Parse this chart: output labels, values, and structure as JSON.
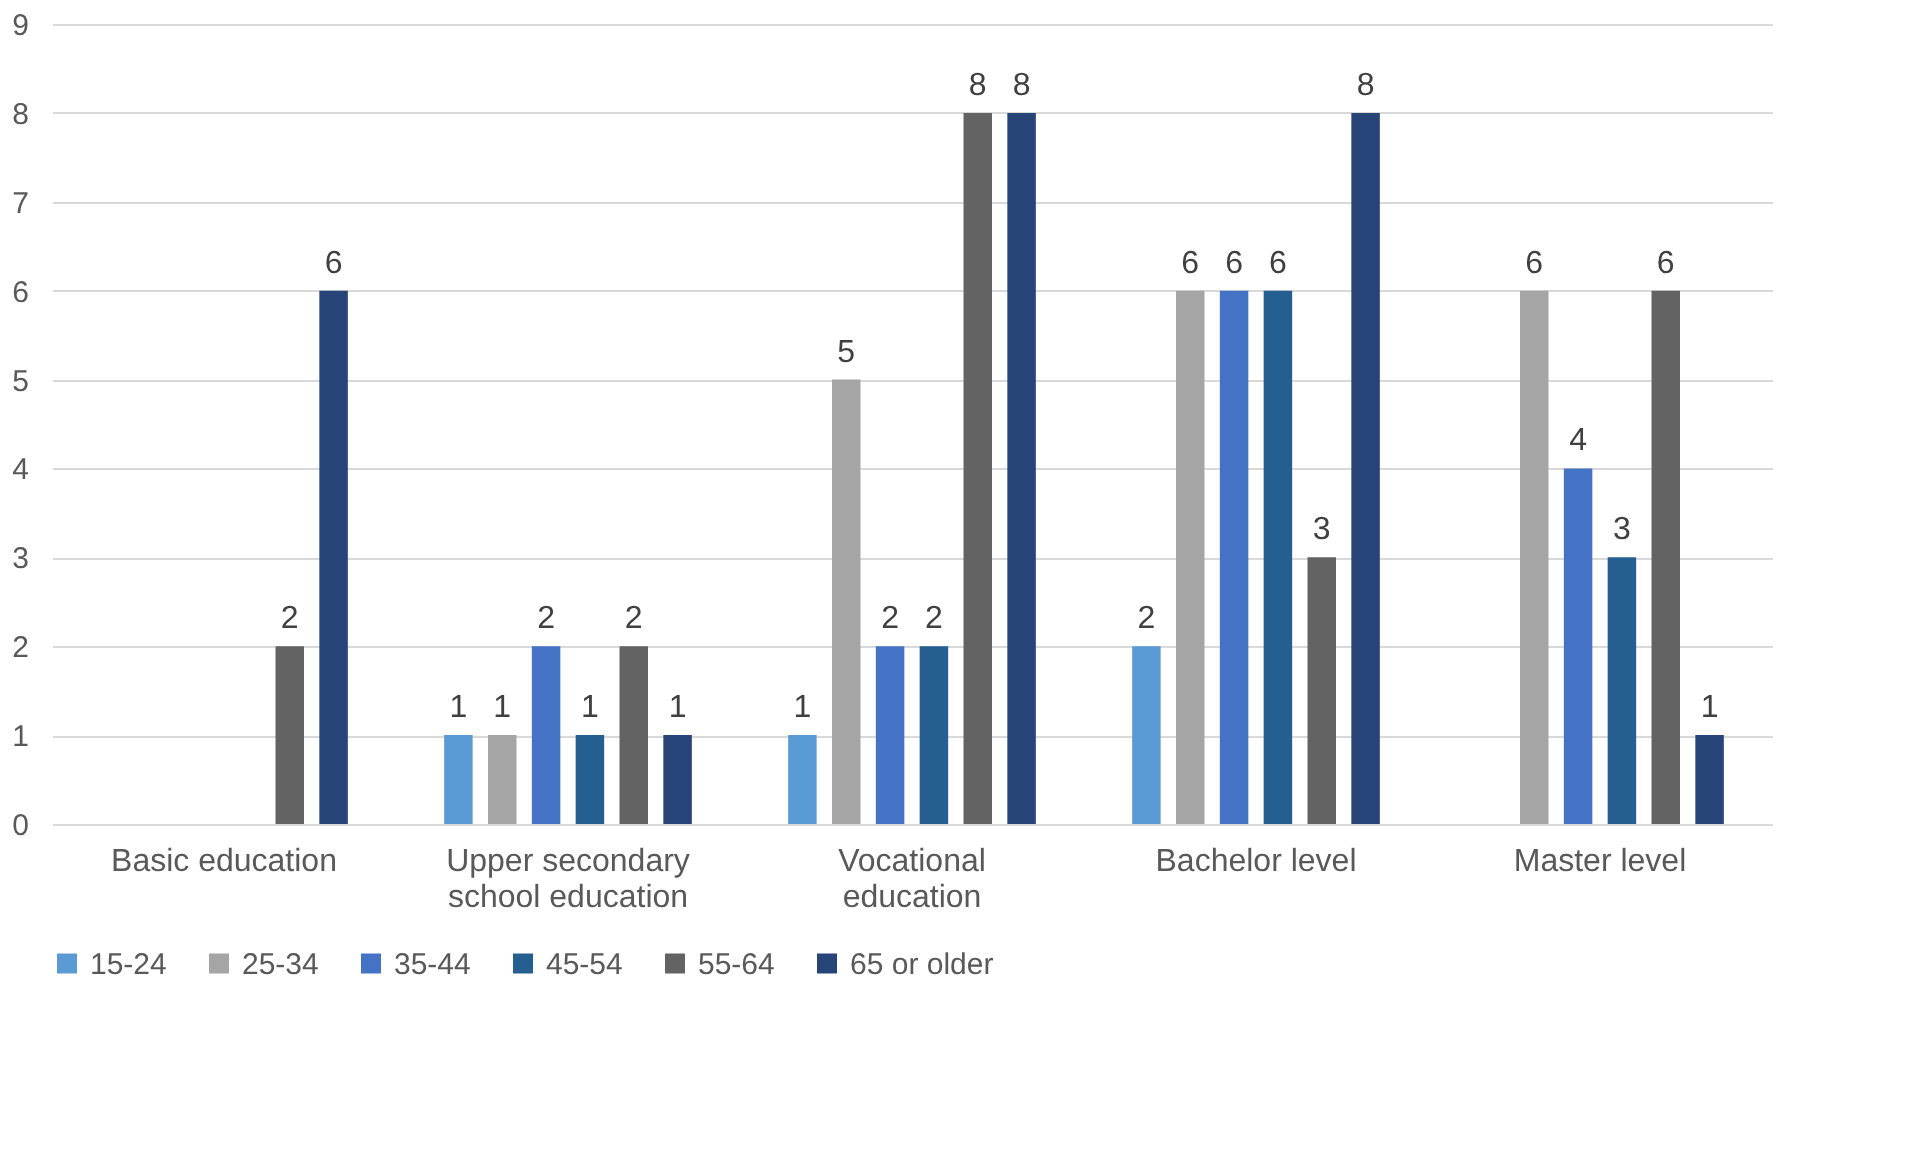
{
  "chart_data": {
    "type": "bar",
    "categories": [
      "Basic education",
      "Upper secondary school education",
      "Vocational education",
      "Bachelor level",
      "Master level"
    ],
    "series": [
      {
        "name": "15-24",
        "color": "#5b9bd5",
        "values": [
          null,
          1,
          1,
          2,
          null
        ]
      },
      {
        "name": "25-34",
        "color": "#a5a5a5",
        "values": [
          null,
          1,
          5,
          6,
          6
        ]
      },
      {
        "name": "35-44",
        "color": "#4472c4",
        "values": [
          null,
          2,
          2,
          6,
          4
        ]
      },
      {
        "name": "45-54",
        "color": "#255e91",
        "values": [
          null,
          1,
          2,
          6,
          3
        ]
      },
      {
        "name": "55-64",
        "color": "#636363",
        "values": [
          2,
          2,
          8,
          3,
          6
        ]
      },
      {
        "name": "65 or older",
        "color": "#264478",
        "values": [
          6,
          1,
          8,
          8,
          1
        ]
      }
    ],
    "ylim": [
      0,
      9
    ],
    "yticks": [
      0,
      1,
      2,
      3,
      4,
      5,
      6,
      7,
      8,
      9
    ],
    "grid": "y",
    "legend": "bottom",
    "data_labels": true
  }
}
